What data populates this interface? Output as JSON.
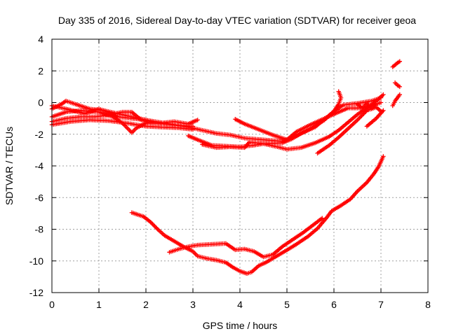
{
  "chart_data": {
    "type": "scatter",
    "title": "Day 335 of 2016, Sidereal Day-to-day VTEC variation (SDTVAR) for receiver geoa",
    "xlabel": "GPS time / hours",
    "ylabel": "SDTVAR / TECUs",
    "xlim": [
      0,
      8
    ],
    "ylim": [
      -12,
      4
    ],
    "xticks": [
      0,
      1,
      2,
      3,
      4,
      5,
      6,
      7,
      8
    ],
    "yticks": [
      -12,
      -10,
      -8,
      -6,
      -4,
      -2,
      0,
      2,
      4
    ],
    "grid": true,
    "marker": "plus",
    "color": "#ff0000",
    "series": [
      {
        "tracks": [
          [
            [
              0.0,
              -0.4
            ],
            [
              0.2,
              -0.1
            ],
            [
              0.3,
              0.1
            ],
            [
              0.5,
              -0.1
            ],
            [
              0.8,
              -0.4
            ],
            [
              1.1,
              -0.5
            ],
            [
              1.4,
              -0.7
            ],
            [
              1.7,
              -0.9
            ],
            [
              2.0,
              -1.1
            ],
            [
              2.3,
              -1.25
            ],
            [
              2.6,
              -1.4
            ],
            [
              2.9,
              -1.55
            ],
            [
              3.2,
              -1.75
            ],
            [
              3.5,
              -1.95
            ],
            [
              3.8,
              -2.05
            ],
            [
              4.1,
              -2.25
            ],
            [
              4.5,
              -2.35
            ],
            [
              4.9,
              -2.45
            ],
            [
              5.2,
              -2.1
            ],
            [
              5.5,
              -1.65
            ],
            [
              5.8,
              -1.1
            ],
            [
              6.0,
              -0.55
            ],
            [
              6.1,
              -0.1
            ],
            [
              6.15,
              0.3
            ],
            [
              6.1,
              0.7
            ]
          ],
          [
            [
              0.0,
              -0.9
            ],
            [
              0.3,
              -0.6
            ],
            [
              0.6,
              -0.5
            ],
            [
              1.0,
              -0.6
            ],
            [
              1.3,
              -0.9
            ],
            [
              1.5,
              -1.3
            ],
            [
              1.6,
              -1.6
            ],
            [
              1.7,
              -1.9
            ],
            [
              1.8,
              -1.6
            ],
            [
              2.0,
              -1.3
            ],
            [
              2.3,
              -1.3
            ],
            [
              2.6,
              -1.2
            ],
            [
              2.9,
              -1.35
            ],
            [
              3.1,
              -1.1
            ]
          ],
          [
            [
              0.0,
              -0.2
            ],
            [
              0.3,
              -0.4
            ],
            [
              0.7,
              -0.7
            ],
            [
              1.0,
              -0.4
            ],
            [
              1.2,
              -0.6
            ],
            [
              1.4,
              -0.9
            ],
            [
              1.7,
              -1.0
            ],
            [
              2.0,
              -1.1
            ],
            [
              2.2,
              -1.3
            ],
            [
              2.4,
              -1.35
            ],
            [
              2.7,
              -1.45
            ],
            [
              3.0,
              -1.5
            ]
          ],
          [
            [
              0.0,
              -1.2
            ],
            [
              0.3,
              -1.0
            ],
            [
              0.6,
              -0.9
            ],
            [
              0.9,
              -0.9
            ],
            [
              1.2,
              -0.8
            ],
            [
              1.5,
              -0.6
            ],
            [
              1.7,
              -0.6
            ],
            [
              1.9,
              -1.1
            ],
            [
              2.1,
              -1.3
            ]
          ],
          [
            [
              0.0,
              -1.4
            ],
            [
              0.4,
              -1.2
            ],
            [
              0.8,
              -1.1
            ],
            [
              1.2,
              -1.15
            ],
            [
              1.6,
              -1.3
            ],
            [
              2.0,
              -1.5
            ],
            [
              2.3,
              -1.55
            ],
            [
              2.7,
              -1.6
            ],
            [
              3.0,
              -1.7
            ]
          ],
          [
            [
              2.9,
              -2.1
            ],
            [
              3.1,
              -2.35
            ],
            [
              3.4,
              -2.7
            ],
            [
              3.7,
              -2.75
            ],
            [
              4.0,
              -2.8
            ],
            [
              4.3,
              -2.7
            ],
            [
              4.5,
              -2.6
            ],
            [
              4.8,
              -2.8
            ],
            [
              5.0,
              -2.95
            ],
            [
              5.3,
              -2.85
            ],
            [
              5.6,
              -2.55
            ],
            [
              5.9,
              -2.15
            ],
            [
              6.1,
              -1.75
            ],
            [
              6.3,
              -1.25
            ],
            [
              6.5,
              -0.75
            ],
            [
              6.7,
              -0.35
            ],
            [
              6.9,
              0.1
            ],
            [
              7.05,
              0.5
            ]
          ],
          [
            [
              3.2,
              -2.65
            ],
            [
              3.5,
              -2.85
            ],
            [
              3.8,
              -2.8
            ],
            [
              4.1,
              -2.85
            ],
            [
              4.2,
              -2.5
            ],
            [
              4.5,
              -2.6
            ],
            [
              4.9,
              -2.55
            ],
            [
              5.1,
              -2.3
            ],
            [
              5.3,
              -1.95
            ],
            [
              5.6,
              -1.55
            ],
            [
              5.8,
              -1.05
            ],
            [
              6.0,
              -0.55
            ],
            [
              6.2,
              -0.15
            ],
            [
              6.5,
              -0.05
            ],
            [
              6.8,
              0.1
            ],
            [
              7.0,
              0.3
            ]
          ],
          [
            [
              3.9,
              -1.05
            ],
            [
              4.1,
              -1.35
            ],
            [
              4.4,
              -1.7
            ],
            [
              4.7,
              -2.05
            ],
            [
              5.0,
              -2.35
            ],
            [
              5.2,
              -1.85
            ],
            [
              5.5,
              -1.4
            ],
            [
              5.8,
              -1.0
            ],
            [
              6.1,
              -0.6
            ],
            [
              6.3,
              -0.35
            ],
            [
              6.6,
              -0.35
            ],
            [
              6.8,
              -0.2
            ],
            [
              7.0,
              0.0
            ]
          ],
          [
            [
              5.65,
              -3.2
            ],
            [
              5.9,
              -2.7
            ],
            [
              6.1,
              -2.2
            ],
            [
              6.3,
              -1.65
            ],
            [
              6.5,
              -1.1
            ],
            [
              6.7,
              -0.5
            ],
            [
              6.9,
              -0.3
            ],
            [
              7.0,
              -0.55
            ]
          ],
          [
            [
              6.7,
              -1.5
            ],
            [
              6.9,
              -1.0
            ],
            [
              7.05,
              -0.5
            ]
          ],
          [
            [
              6.5,
              -0.1
            ],
            [
              6.6,
              -0.35
            ],
            [
              6.7,
              -0.05
            ],
            [
              6.8,
              -0.4
            ],
            [
              6.9,
              -0.1
            ]
          ],
          [
            [
              7.25,
              2.25
            ],
            [
              7.35,
              2.5
            ],
            [
              7.4,
              2.6
            ]
          ],
          [
            [
              7.3,
              1.25
            ],
            [
              7.35,
              1.1
            ],
            [
              7.4,
              1.0
            ]
          ],
          [
            [
              7.25,
              -0.2
            ],
            [
              7.3,
              0.1
            ],
            [
              7.4,
              0.5
            ]
          ],
          [
            [
              1.7,
              -6.95
            ],
            [
              1.95,
              -7.2
            ],
            [
              2.1,
              -7.55
            ],
            [
              2.25,
              -8.0
            ],
            [
              2.4,
              -8.4
            ],
            [
              2.6,
              -8.75
            ],
            [
              2.8,
              -9.1
            ],
            [
              3.0,
              -9.4
            ],
            [
              3.1,
              -9.7
            ],
            [
              3.3,
              -9.85
            ],
            [
              3.5,
              -9.95
            ],
            [
              3.7,
              -10.1
            ],
            [
              3.85,
              -10.4
            ],
            [
              4.0,
              -10.65
            ],
            [
              4.15,
              -10.8
            ],
            [
              4.25,
              -10.7
            ],
            [
              4.4,
              -10.3
            ],
            [
              4.55,
              -10.1
            ],
            [
              4.75,
              -9.75
            ],
            [
              4.95,
              -9.4
            ],
            [
              5.2,
              -8.95
            ],
            [
              5.45,
              -8.45
            ],
            [
              5.65,
              -7.95
            ],
            [
              5.85,
              -7.25
            ],
            [
              5.95,
              -6.85
            ],
            [
              6.15,
              -6.5
            ],
            [
              6.35,
              -6.1
            ],
            [
              6.5,
              -5.6
            ],
            [
              6.7,
              -5.05
            ],
            [
              6.85,
              -4.5
            ],
            [
              6.95,
              -4.05
            ],
            [
              7.05,
              -3.4
            ]
          ],
          [
            [
              2.5,
              -9.45
            ],
            [
              2.7,
              -9.25
            ],
            [
              2.9,
              -9.1
            ],
            [
              3.1,
              -9.0
            ],
            [
              3.4,
              -8.95
            ],
            [
              3.7,
              -8.9
            ],
            [
              3.9,
              -9.3
            ],
            [
              4.1,
              -9.25
            ],
            [
              4.3,
              -9.4
            ],
            [
              4.5,
              -9.75
            ],
            [
              4.7,
              -9.6
            ],
            [
              4.9,
              -9.1
            ],
            [
              5.1,
              -8.7
            ],
            [
              5.35,
              -8.2
            ],
            [
              5.55,
              -7.75
            ],
            [
              5.75,
              -7.3
            ]
          ]
        ]
      }
    ]
  }
}
